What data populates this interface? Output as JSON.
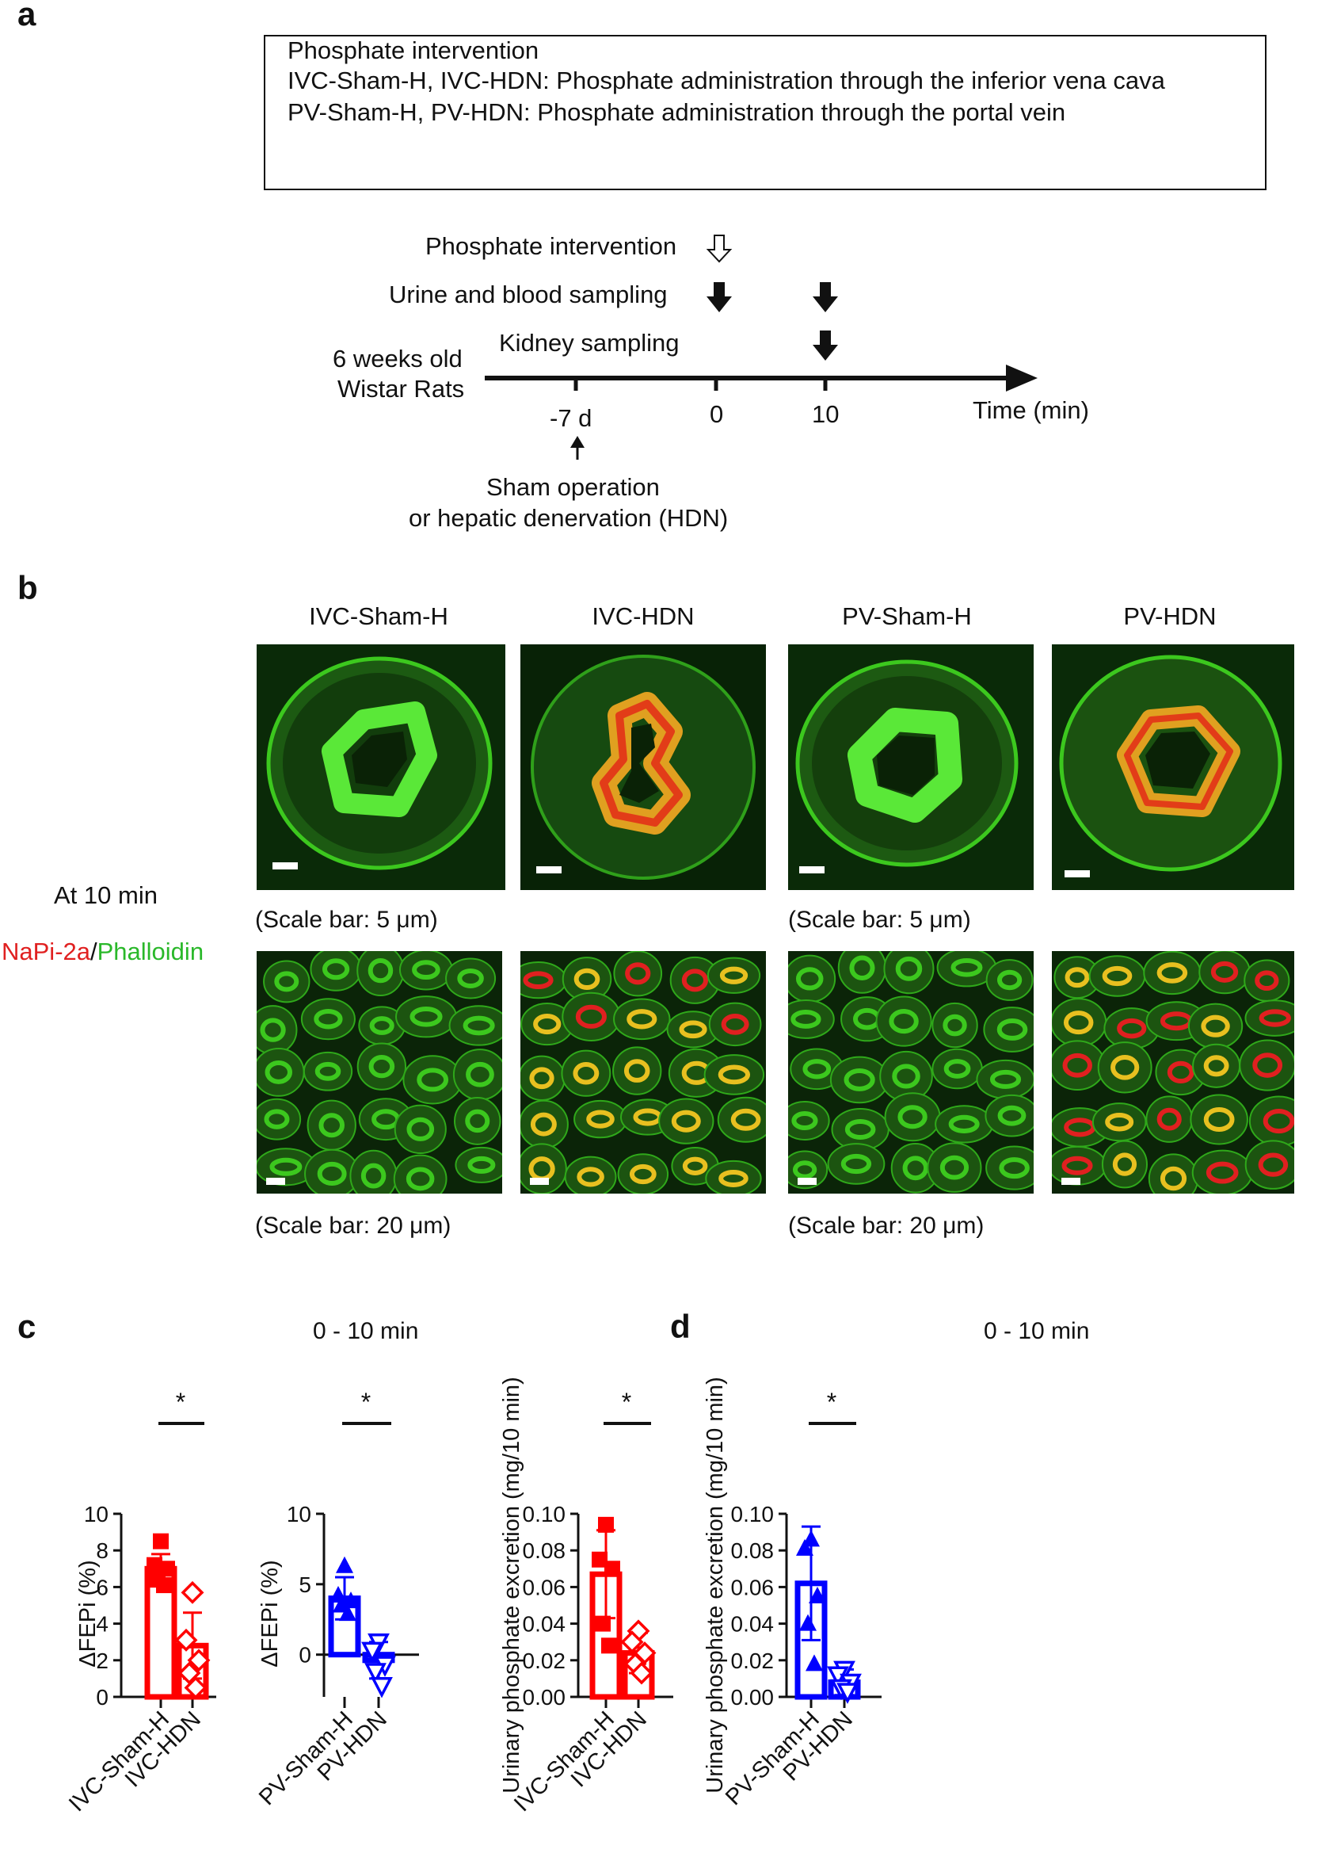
{
  "panels": {
    "a": "a",
    "b": "b",
    "c": "c",
    "d": "d"
  },
  "panel_a": {
    "box_lines": [
      "Phosphate intervention",
      "IVC-Sham-H, IVC-HDN: Phosphate administration through the inferior vena cava",
      "PV-Sham-H, PV-HDN: Phosphate administration through the portal vein"
    ],
    "timeline": {
      "phosphate_intervention": "Phosphate intervention",
      "urine_blood": "Urine and blood  sampling",
      "kidney_sampling": "Kidney sampling",
      "rats_line1": "6 weeks old",
      "rats_line2": "Wistar Rats",
      "tick_minus7": "-7 d",
      "tick_0": "0",
      "tick_10": "10",
      "time_label": "Time (min)",
      "sham_line1": "Sham operation",
      "sham_line2": "or hepatic denervation (HDN)"
    }
  },
  "panel_b": {
    "columns": [
      "IVC-Sham-H",
      "IVC-HDN",
      "PV-Sham-H",
      "PV-HDN"
    ],
    "at_time": "At 10 min",
    "stain_red": "NaPi-2a",
    "stain_sep": "/",
    "stain_green": "Phalloidin",
    "scale_top": "(Scale bar: 5 μm)",
    "scale_bottom": "(Scale bar: 20 μm)",
    "colors": {
      "green": "#3cc81e",
      "red": "#e02020",
      "yellow": "#e8c020"
    }
  },
  "panel_c": {
    "title": "0 - 10 min"
  },
  "panel_d": {
    "title": "0 - 10 min"
  },
  "chart_data": [
    {
      "type": "bar",
      "categories": [
        "IVC-Sham-H",
        "IVC-HDN"
      ],
      "values": [
        7.0,
        2.8
      ],
      "error": [
        0.8,
        1.8
      ],
      "points": [
        [
          8.5,
          7.2,
          7.0,
          6.4,
          6.1
        ],
        [
          5.7,
          3.1,
          2.0,
          1.3,
          0.5
        ]
      ],
      "markers": [
        "filled-square",
        "open-diamond"
      ],
      "colors": [
        "#ff0000",
        "#ff0000"
      ],
      "ylabel": "ΔFEPi (%)",
      "ylim": [
        0,
        10
      ],
      "yticks": [
        "0",
        "2",
        "4",
        "6",
        "8",
        "10"
      ],
      "significance": "*"
    },
    {
      "type": "bar",
      "categories": [
        "PV-Sham-H",
        "PV-HDN"
      ],
      "values": [
        4.0,
        -0.4
      ],
      "error": [
        1.5,
        1.3
      ],
      "points": [
        [
          6.3,
          4.2,
          3.8,
          3.5,
          2.9
        ],
        [
          0.9,
          0.3,
          -0.7,
          -1.2,
          -2.2
        ]
      ],
      "markers": [
        "filled-triangle",
        "open-triangle-down"
      ],
      "colors": [
        "#0000ff",
        "#0000ff"
      ],
      "ylabel": "ΔFEPi (%)",
      "ylim": [
        -3,
        10
      ],
      "yticks": [
        "0",
        "5",
        "10"
      ],
      "significance": "*"
    },
    {
      "type": "bar",
      "categories": [
        "IVC-Sham-H",
        "IVC-HDN"
      ],
      "values": [
        0.067,
        0.024
      ],
      "error": [
        0.024,
        0.011
      ],
      "points": [
        [
          0.094,
          0.075,
          0.07,
          0.04,
          0.028
        ],
        [
          0.036,
          0.03,
          0.024,
          0.018,
          0.013
        ]
      ],
      "markers": [
        "filled-square",
        "open-diamond"
      ],
      "colors": [
        "#ff0000",
        "#ff0000"
      ],
      "ylabel": "Urinary phosphate excretion (mg/10 min)",
      "ylim": [
        0,
        0.1
      ],
      "yticks": [
        "0.00",
        "0.02",
        "0.04",
        "0.06",
        "0.08",
        "0.10"
      ],
      "significance": "*"
    },
    {
      "type": "bar",
      "categories": [
        "PV-Sham-H",
        "PV-HDN"
      ],
      "values": [
        0.062,
        0.008
      ],
      "error": [
        0.031,
        0.007
      ],
      "points": [
        [
          0.086,
          0.081,
          0.055,
          0.04,
          0.018
        ],
        [
          0.015,
          0.012,
          0.008,
          0.005,
          0.003
        ]
      ],
      "markers": [
        "filled-triangle",
        "open-triangle-down"
      ],
      "colors": [
        "#0000ff",
        "#0000ff"
      ],
      "ylabel": "Urinary phosphate excretion (mg/10 min)",
      "ylim": [
        0,
        0.1
      ],
      "yticks": [
        "0.00",
        "0.02",
        "0.04",
        "0.06",
        "0.08",
        "0.10"
      ],
      "significance": "*"
    }
  ]
}
